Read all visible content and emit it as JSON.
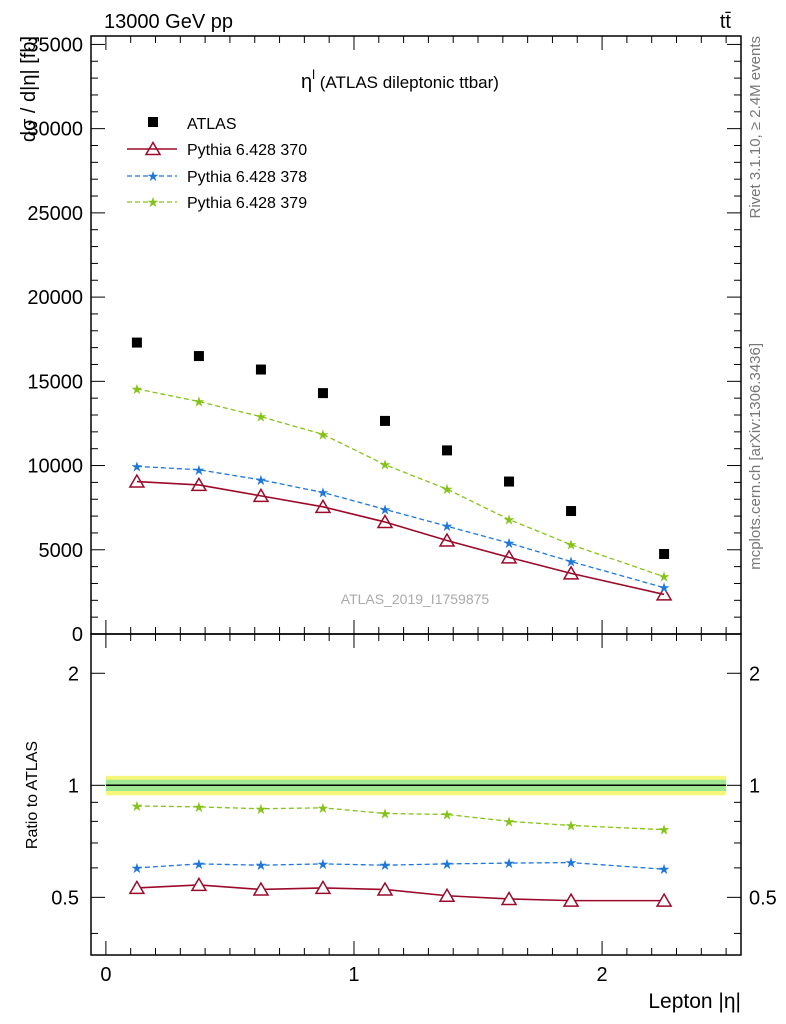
{
  "header": {
    "energy": "13000 GeV pp",
    "process": "tt̄"
  },
  "side_labels": {
    "rivet": "Rivet 3.1.10, ≥ 2.4M events",
    "mcplots": "mcplots.cern.ch [arXiv:1306.3436]"
  },
  "main_plot": {
    "title_symbol": "η",
    "title_sup": "l",
    "title_rest": " (ATLAS dileptonic ttbar)",
    "ylabel": "dσ / d|η| [fb]",
    "watermark": "ATLAS_2019_I1759875",
    "yticks": [
      "0",
      "5000",
      "10000",
      "15000",
      "20000",
      "25000",
      "30000",
      "35000"
    ]
  },
  "ratio_plot": {
    "ylabel": "Ratio to ATLAS",
    "yticks": [
      "0.5",
      "1",
      "2"
    ]
  },
  "xaxis": {
    "label": "Lepton |η|",
    "ticks": [
      "0",
      "1",
      "2"
    ]
  },
  "colors": {
    "atlas": "#000000",
    "pythia370": "#9b0a2a",
    "pythia378": "#1f78d8",
    "pythia379": "#86c31a",
    "band_yellow": "#f6f67a",
    "band_green": "#9fe88f"
  },
  "chart_data": {
    "type": "scatter",
    "x": [
      0.125,
      0.375,
      0.625,
      0.875,
      1.125,
      1.375,
      1.625,
      1.875,
      2.25
    ],
    "xlim": [
      -0.06,
      2.56
    ],
    "ylim": [
      0,
      35500
    ],
    "legend_placement": "top-left",
    "series": [
      {
        "name": "ATLAS",
        "marker": "square",
        "values": [
          17300,
          16500,
          15700,
          14300,
          12650,
          10900,
          9050,
          7300,
          4750
        ]
      },
      {
        "name": "Pythia 6.428 370",
        "marker": "open-triangle",
        "line": "solid",
        "values": [
          9050,
          8850,
          8200,
          7550,
          6650,
          5550,
          4550,
          3600,
          2350
        ]
      },
      {
        "name": "Pythia 6.428 378",
        "marker": "star",
        "line": "dashed",
        "values": [
          9950,
          9750,
          9150,
          8400,
          7400,
          6400,
          5400,
          4300,
          2750
        ]
      },
      {
        "name": "Pythia 6.428 379",
        "marker": "star",
        "line": "dashed",
        "values": [
          14550,
          13800,
          12900,
          11850,
          10050,
          8600,
          6800,
          5300,
          3400
        ]
      }
    ],
    "ratio": {
      "ylim_log": [
        0.35,
        2.55
      ],
      "reference": 1,
      "band": [
        0.94,
        1.06
      ],
      "series": [
        {
          "name": "Pythia 6.428 370",
          "values": [
            0.53,
            0.54,
            0.525,
            0.53,
            0.525,
            0.505,
            0.495,
            0.49,
            0.49
          ]
        },
        {
          "name": "Pythia 6.428 378",
          "values": [
            0.6,
            0.615,
            0.61,
            0.615,
            0.61,
            0.615,
            0.618,
            0.62,
            0.595
          ]
        },
        {
          "name": "Pythia 6.428 379",
          "values": [
            0.88,
            0.875,
            0.865,
            0.87,
            0.84,
            0.835,
            0.8,
            0.78,
            0.76
          ]
        }
      ]
    }
  }
}
